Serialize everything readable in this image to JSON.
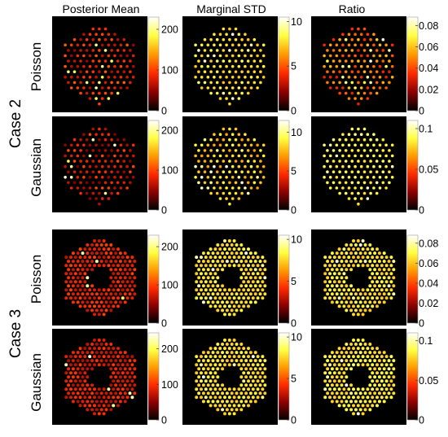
{
  "column_titles": [
    "Posterior Mean",
    "Marginal STD",
    "Ratio"
  ],
  "cases": [
    {
      "label": "Case 2",
      "rows": [
        "Poisson",
        "Gaussian"
      ],
      "hole": false
    },
    {
      "label": "Case 3",
      "rows": [
        "Poisson",
        "Gaussian"
      ],
      "hole": true
    }
  ],
  "chart_data": [
    {
      "type": "heatmap",
      "case": "Case 2",
      "row": "Poisson",
      "column": "Posterior Mean",
      "colorbar_ticks": [
        "200",
        "100",
        "0"
      ],
      "colorbar_range": [
        0,
        230
      ],
      "title": "",
      "xlabel": "",
      "ylabel": ""
    },
    {
      "type": "heatmap",
      "case": "Case 2",
      "row": "Poisson",
      "column": "Marginal STD",
      "colorbar_ticks": [
        "10",
        "5",
        "0"
      ],
      "colorbar_range": [
        0,
        10.5
      ],
      "title": "",
      "xlabel": "",
      "ylabel": ""
    },
    {
      "type": "heatmap",
      "case": "Case 2",
      "row": "Poisson",
      "column": "Ratio",
      "colorbar_ticks": [
        "0.08",
        "0.06",
        "0.04",
        "0.02",
        "0"
      ],
      "colorbar_range": [
        0,
        0.088
      ],
      "title": "",
      "xlabel": "",
      "ylabel": ""
    },
    {
      "type": "heatmap",
      "case": "Case 2",
      "row": "Gaussian",
      "column": "Posterior Mean",
      "colorbar_ticks": [
        "200",
        "100",
        "0"
      ],
      "colorbar_range": [
        0,
        225
      ],
      "title": "",
      "xlabel": "",
      "ylabel": ""
    },
    {
      "type": "heatmap",
      "case": "Case 2",
      "row": "Gaussian",
      "column": "Marginal STD",
      "colorbar_ticks": [
        "10",
        "5",
        "0"
      ],
      "colorbar_range": [
        0,
        11.5
      ],
      "title": "",
      "xlabel": "",
      "ylabel": ""
    },
    {
      "type": "heatmap",
      "case": "Case 2",
      "row": "Gaussian",
      "column": "Ratio",
      "colorbar_ticks": [
        "0.1",
        "0.05",
        "0"
      ],
      "colorbar_range": [
        0,
        0.11
      ],
      "title": "",
      "xlabel": "",
      "ylabel": ""
    },
    {
      "type": "heatmap",
      "case": "Case 3",
      "row": "Poisson",
      "column": "Posterior Mean",
      "colorbar_ticks": [
        "200",
        "100",
        "0"
      ],
      "colorbar_range": [
        0,
        230
      ],
      "title": "",
      "xlabel": "",
      "ylabel": ""
    },
    {
      "type": "heatmap",
      "case": "Case 3",
      "row": "Poisson",
      "column": "Marginal STD",
      "colorbar_ticks": [
        "10",
        "5",
        "0"
      ],
      "colorbar_range": [
        0,
        10.5
      ],
      "title": "",
      "xlabel": "",
      "ylabel": ""
    },
    {
      "type": "heatmap",
      "case": "Case 3",
      "row": "Poisson",
      "column": "Ratio",
      "colorbar_ticks": [
        "0.08",
        "0.06",
        "0.04",
        "0.02",
        "0"
      ],
      "colorbar_range": [
        0,
        0.088
      ],
      "title": "",
      "xlabel": "",
      "ylabel": ""
    },
    {
      "type": "heatmap",
      "case": "Case 3",
      "row": "Gaussian",
      "column": "Posterior Mean",
      "colorbar_ticks": [
        "200",
        "100",
        "0"
      ],
      "colorbar_range": [
        0,
        245
      ],
      "title": "",
      "xlabel": "",
      "ylabel": ""
    },
    {
      "type": "heatmap",
      "case": "Case 3",
      "row": "Gaussian",
      "column": "Marginal STD",
      "colorbar_ticks": [
        "10",
        "5",
        "0"
      ],
      "colorbar_range": [
        0,
        10.5
      ],
      "title": "",
      "xlabel": "",
      "ylabel": ""
    },
    {
      "type": "heatmap",
      "case": "Case 3",
      "row": "Gaussian",
      "column": "Ratio",
      "colorbar_ticks": [
        "0.1",
        "0.05",
        "0"
      ],
      "colorbar_range": [
        0,
        0.11
      ],
      "title": "",
      "xlabel": "",
      "ylabel": ""
    }
  ],
  "colormap": {
    "name": "hot",
    "stops": [
      "#000000",
      "#8b0000",
      "#ff2a00",
      "#ff9a00",
      "#ffff40",
      "#ffffff"
    ]
  }
}
